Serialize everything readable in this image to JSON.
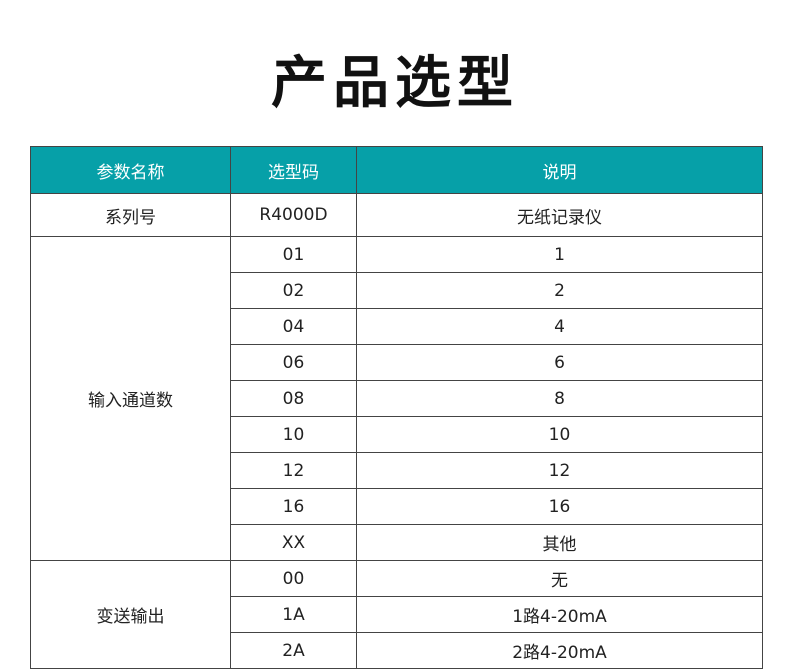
{
  "title": "产品选型",
  "colors": {
    "header_bg": "#06a0a8",
    "border": "#444444"
  },
  "headers": [
    "参数名称",
    "选型码",
    "说明"
  ],
  "series": {
    "name": "系列号",
    "code": "R4000D",
    "desc": "无纸记录仪"
  },
  "channels": {
    "name": "输入通道数",
    "rows": [
      {
        "code": "01",
        "desc": "1"
      },
      {
        "code": "02",
        "desc": "2"
      },
      {
        "code": "04",
        "desc": "4"
      },
      {
        "code": "06",
        "desc": "6"
      },
      {
        "code": "08",
        "desc": "8"
      },
      {
        "code": "10",
        "desc": "10"
      },
      {
        "code": "12",
        "desc": "12"
      },
      {
        "code": "16",
        "desc": "16"
      },
      {
        "code": "XX",
        "desc": "其他"
      }
    ]
  },
  "output": {
    "name": "变送输出",
    "rows": [
      {
        "code": "00",
        "desc": "无"
      },
      {
        "code": "1A",
        "desc": "1路4-20mA"
      },
      {
        "code": "2A",
        "desc": "2路4-20mA"
      }
    ]
  }
}
